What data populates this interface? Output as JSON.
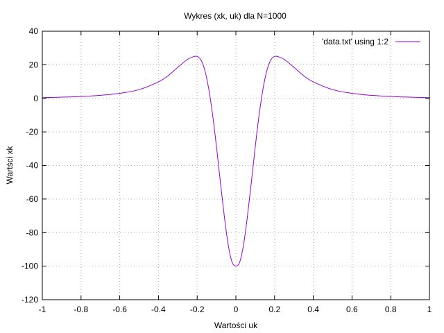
{
  "chart_data": {
    "type": "line",
    "title": "Wykres (xk, uk) dla N=1000",
    "xlabel": "Wartości uk",
    "ylabel": "Wartści xk",
    "xlim": [
      -1,
      1
    ],
    "ylim": [
      -120,
      40
    ],
    "xticks": [
      -1,
      -0.8,
      -0.6,
      -0.4,
      -0.2,
      0,
      0.2,
      0.4,
      0.6,
      0.8,
      1
    ],
    "yticks": [
      -120,
      -100,
      -80,
      -60,
      -40,
      -20,
      0,
      20,
      40
    ],
    "xtick_labels": [
      "-1",
      "-0.8",
      "-0.6",
      "-0.4",
      "-0.2",
      "0",
      "0.2",
      "0.4",
      "0.6",
      "0.8",
      "1"
    ],
    "ytick_labels": [
      "-120",
      "-100",
      "-80",
      "-60",
      "-40",
      "-20",
      "0",
      "20",
      "40"
    ],
    "grid": true,
    "legend_position": "top-right",
    "series": [
      {
        "name": "'data.txt' using 1:2",
        "color": "#9400d3",
        "x": [
          -1.0,
          -0.9,
          -0.8,
          -0.7,
          -0.6,
          -0.5,
          -0.4,
          -0.35,
          -0.3,
          -0.25,
          -0.22,
          -0.2,
          -0.18,
          -0.16,
          -0.14,
          -0.12,
          -0.1,
          -0.08,
          -0.06,
          -0.04,
          -0.02,
          0.0,
          0.02,
          0.04,
          0.06,
          0.08,
          0.1,
          0.12,
          0.14,
          0.16,
          0.18,
          0.2,
          0.22,
          0.25,
          0.3,
          0.35,
          0.4,
          0.5,
          0.6,
          0.7,
          0.8,
          0.9,
          1.0
        ],
        "y": [
          0.4,
          0.7,
          1.1,
          1.8,
          3.0,
          5.2,
          9.8,
          13.5,
          18.5,
          23.2,
          24.8,
          25.0,
          22.8,
          16.5,
          5.5,
          -10.0,
          -29.0,
          -50.0,
          -70.0,
          -87.0,
          -97.5,
          -100.0,
          -97.5,
          -87.0,
          -70.0,
          -50.0,
          -29.0,
          -10.0,
          5.5,
          16.5,
          22.8,
          25.0,
          24.8,
          23.2,
          18.5,
          13.5,
          9.8,
          5.2,
          3.0,
          1.8,
          1.1,
          0.7,
          0.4
        ]
      }
    ]
  }
}
